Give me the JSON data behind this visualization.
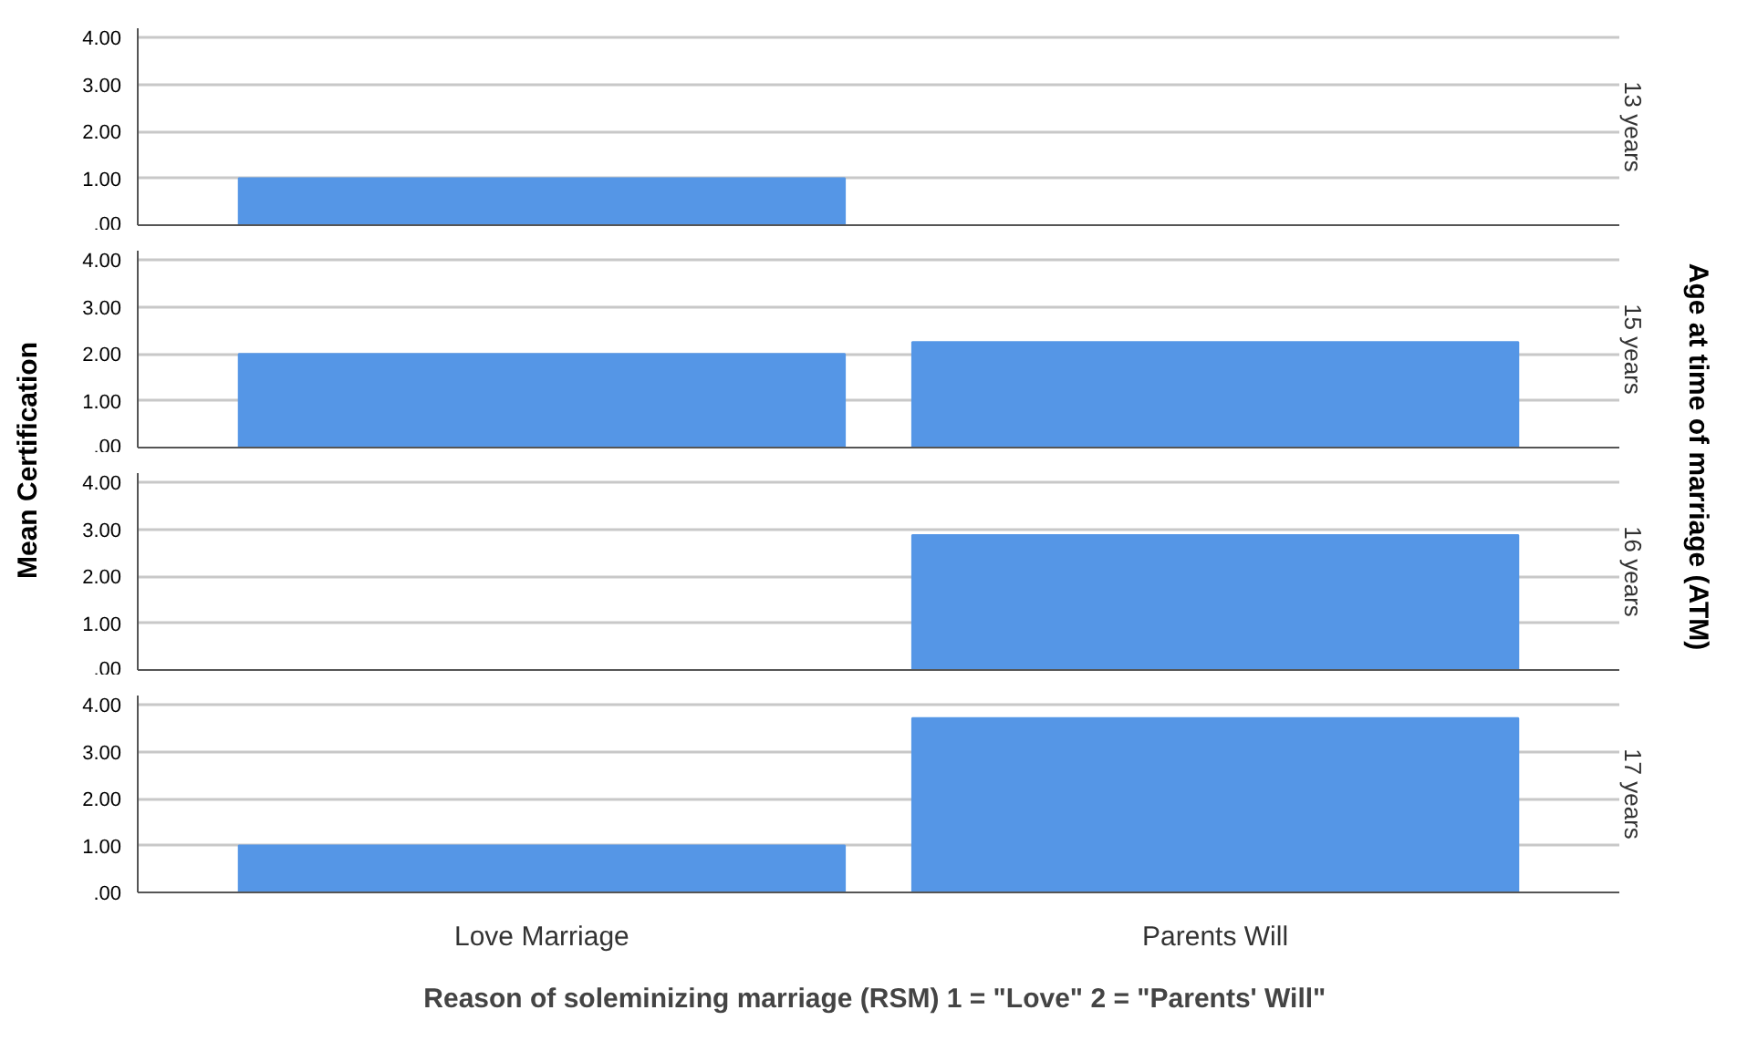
{
  "chart_data": [
    {
      "type": "bar",
      "values": [
        1.0,
        null
      ],
      "color": "#5596e6",
      "ylim": [
        0,
        4.2
      ],
      "yticks": [
        {
          "value": 0,
          "label": ".00"
        },
        {
          "value": 1,
          "label": "1.00"
        },
        {
          "value": 2,
          "label": "2.00"
        },
        {
          "value": 3,
          "label": "3.00"
        },
        {
          "value": 4,
          "label": "4.00"
        }
      ],
      "grid": "y",
      "tick_labels": "y",
      "y2label": "13 years",
      "ylabel": "Mean Certification",
      "annotations": [
        "Age at time of marriage (ATM)"
      ]
    },
    {
      "type": "bar",
      "values": [
        2.0,
        2.25
      ],
      "color": "#5596e6",
      "ylim": [
        0,
        4.2
      ],
      "yticks": [
        {
          "value": 0,
          "label": ".00"
        },
        {
          "value": 1,
          "label": "1.00"
        },
        {
          "value": 2,
          "label": "2.00"
        },
        {
          "value": 3,
          "label": "3.00"
        },
        {
          "value": 4,
          "label": "4.00"
        }
      ],
      "grid": "y",
      "tick_labels": "y",
      "y2label": "15 years"
    },
    {
      "type": "bar",
      "values": [
        null,
        2.88
      ],
      "color": "#5596e6",
      "ylim": [
        0,
        4.2
      ],
      "yticks": [
        {
          "value": 0,
          "label": ".00"
        },
        {
          "value": 1,
          "label": "1.00"
        },
        {
          "value": 2,
          "label": "2.00"
        },
        {
          "value": 3,
          "label": "3.00"
        },
        {
          "value": 4,
          "label": "4.00"
        }
      ],
      "grid": "y",
      "tick_labels": "y",
      "y2label": "16 years"
    },
    {
      "type": "bar",
      "categories": [
        "Love Marriage",
        "Parents Will"
      ],
      "values": [
        1.0,
        3.72
      ],
      "color": "#5596e6",
      "ylim": [
        0,
        4.2
      ],
      "yticks": [
        {
          "value": 0,
          "label": ".00"
        },
        {
          "value": 1,
          "label": "1.00"
        },
        {
          "value": 2,
          "label": "2.00"
        },
        {
          "value": 3,
          "label": "3.00"
        },
        {
          "value": 4,
          "label": "4.00"
        }
      ],
      "grid": "y",
      "y2label": "17 years",
      "xlabel": "Reason of soleminizing marriage (RSM) 1 = \"Love\"  2 = \"Parents' Will\""
    }
  ]
}
